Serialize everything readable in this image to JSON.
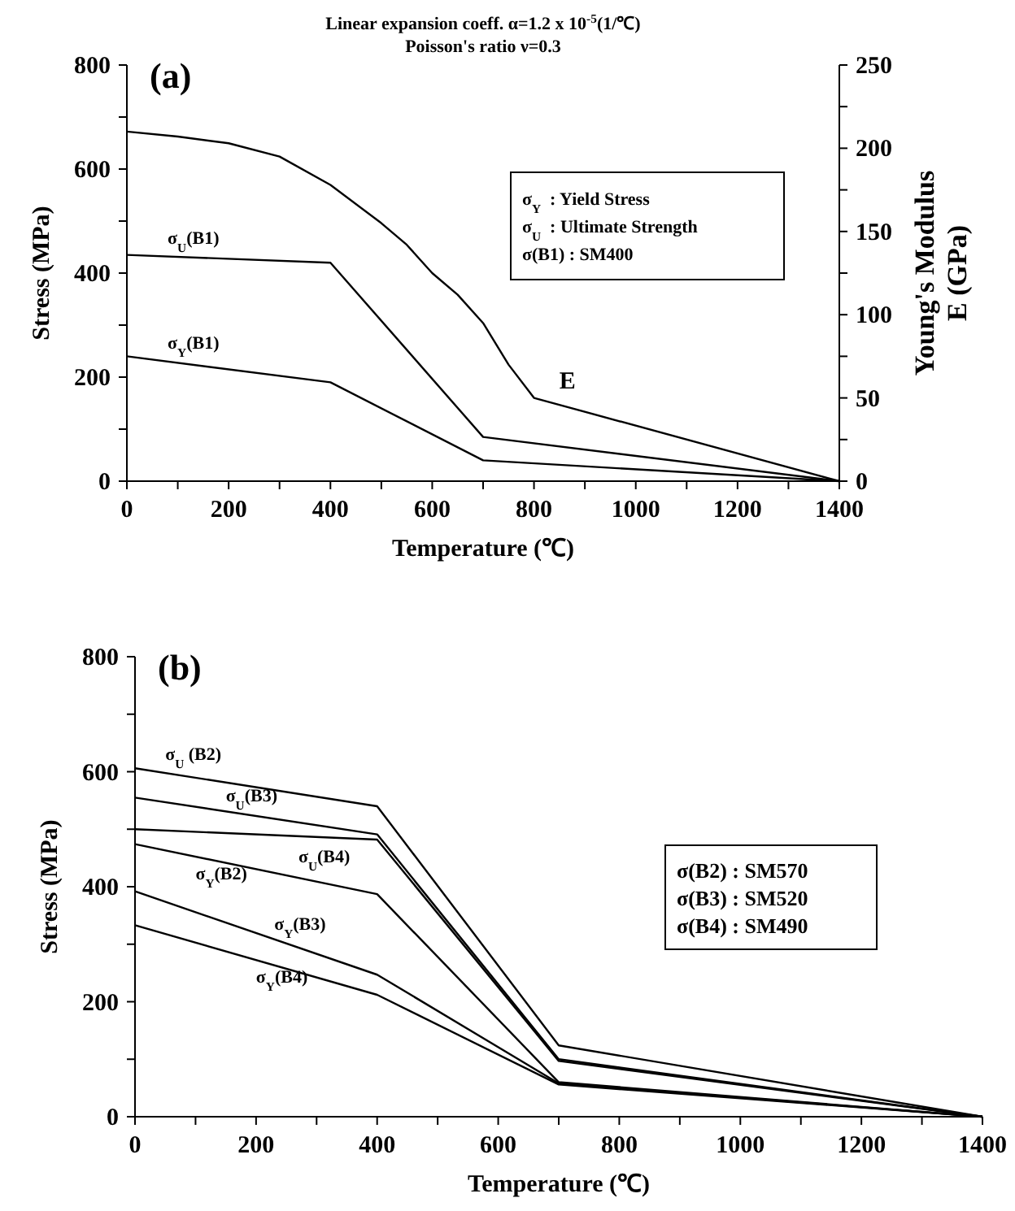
{
  "chart_data": [
    {
      "type": "line",
      "title": "Linear expansion coeff. α=1.2 x 10$^{-5}$(1/℃)",
      "subtitle": "Poisson's ratio ν=0.3",
      "xlabel": "Temperature (℃)",
      "ylabel": "Stress (MPa)",
      "y2label": "Young's Modulus\nE (GPa)",
      "annotations": [
        "(a)",
        "σ$_{Y}$  : Yield Stress",
        "σ$_{U}$  : Ultimate Strength",
        "σ(B1) : SM400"
      ],
      "xlim": [
        0,
        1400
      ],
      "xticks": [
        0,
        {
          "value": 100,
          "label": null
        },
        200,
        {
          "value": 300,
          "label": null
        },
        400,
        {
          "value": 500,
          "label": null
        },
        600,
        {
          "value": 700,
          "label": null
        },
        800,
        {
          "value": 900,
          "label": null
        },
        1000,
        {
          "value": 1100,
          "label": null
        },
        1200,
        {
          "value": 1300,
          "label": null
        },
        1400
      ],
      "ylim": [
        0,
        800
      ],
      "yticks": [
        0,
        {
          "value": 100,
          "label": null
        },
        200,
        {
          "value": 300,
          "label": null
        },
        400,
        {
          "value": 500,
          "label": null
        },
        600,
        {
          "value": 700,
          "label": null
        },
        800
      ],
      "y2lim": [
        0,
        250
      ],
      "y2ticks": [
        0,
        {
          "value": 25,
          "label": null
        },
        50,
        {
          "value": 75,
          "label": null
        },
        100,
        {
          "value": 125,
          "label": null
        },
        150,
        {
          "value": 175,
          "label": null
        },
        200,
        {
          "value": 225,
          "label": null
        },
        250
      ],
      "grid": false,
      "series": [
        {
          "name": "σ$_{U}$(B1)",
          "color": "#000000",
          "x": [
            0,
            400,
            700,
            1400
          ],
          "values": [
            435,
            420,
            85,
            0
          ]
        },
        {
          "name": "σ$_{Y}$(B1)",
          "color": "#000000",
          "x": [
            0,
            400,
            700,
            1400
          ],
          "values": [
            240,
            190,
            40,
            0
          ]
        },
        {
          "name": "E",
          "color": "#000000",
          "axis": "y2",
          "x": [
            0,
            100,
            200,
            300,
            400,
            500,
            550,
            600,
            650,
            700,
            750,
            800,
            1400
          ],
          "values": [
            210,
            207,
            203,
            195,
            178,
            155,
            142,
            125,
            112,
            95,
            70,
            50,
            0
          ]
        }
      ]
    },
    {
      "type": "line",
      "xlabel": "Temperature (℃)",
      "ylabel": "Stress (MPa)",
      "annotations": [
        "(b)",
        "σ(B2) : SM570",
        "σ(B3) : SM520",
        "σ(B4) : SM490"
      ],
      "xlim": [
        0,
        1400
      ],
      "xticks": [
        0,
        {
          "value": 100,
          "label": null
        },
        200,
        {
          "value": 300,
          "label": null
        },
        400,
        {
          "value": 500,
          "label": null
        },
        600,
        {
          "value": 700,
          "label": null
        },
        800,
        {
          "value": 900,
          "label": null
        },
        1000,
        {
          "value": 1100,
          "label": null
        },
        1200,
        {
          "value": 1300,
          "label": null
        },
        1400
      ],
      "ylim": [
        0,
        800
      ],
      "yticks": [
        0,
        {
          "value": 100,
          "label": null
        },
        200,
        {
          "value": 300,
          "label": null
        },
        400,
        {
          "value": 500,
          "label": null
        },
        600,
        {
          "value": 700,
          "label": null
        },
        800
      ],
      "grid": false,
      "series": [
        {
          "name": "σ$_{U}$ (B2)",
          "color": "#000000",
          "x": [
            0,
            400,
            700,
            1400
          ],
          "values": [
            606,
            540,
            124,
            0
          ]
        },
        {
          "name": "σ$_{U}$(B3)",
          "color": "#000000",
          "x": [
            0,
            400,
            700,
            1400
          ],
          "values": [
            555,
            491,
            100,
            0
          ]
        },
        {
          "name": "σ$_{U}$(B4)",
          "color": "#000000",
          "x": [
            0,
            400,
            700,
            1400
          ],
          "values": [
            500,
            482,
            97,
            0
          ]
        },
        {
          "name": "σ$_{Y}$(B2)",
          "color": "#000000",
          "x": [
            0,
            400,
            700,
            1400
          ],
          "values": [
            474,
            387,
            60,
            0
          ]
        },
        {
          "name": "σ$_{Y}$(B3)",
          "color": "#000000",
          "x": [
            0,
            400,
            700,
            1400
          ],
          "values": [
            392,
            247,
            58,
            0
          ]
        },
        {
          "name": "σ$_{Y}$(B4)",
          "color": "#000000",
          "x": [
            0,
            400,
            700,
            1400
          ],
          "values": [
            333,
            212,
            56,
            0
          ]
        }
      ]
    }
  ]
}
